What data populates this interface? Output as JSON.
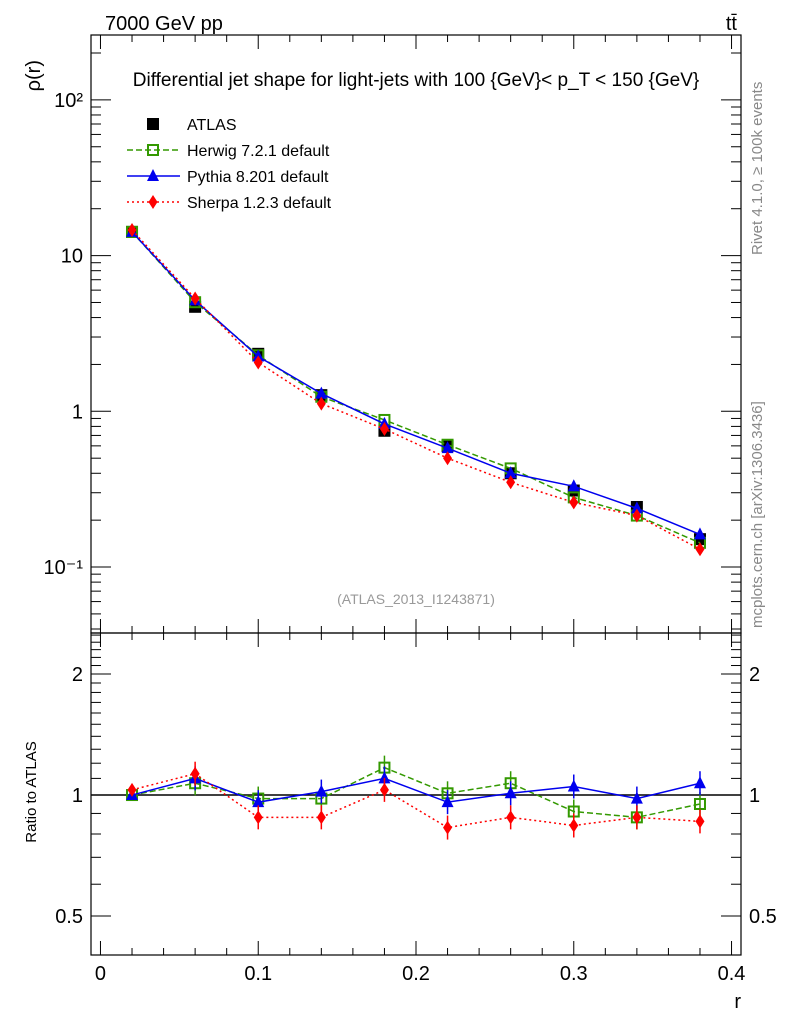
{
  "header": {
    "energy_label": "7000 GeV pp",
    "process_label": "tt̄",
    "side_label_top": "Rivet 4.1.0, ≥ 100k events",
    "side_label_bottom": "mcplots.cern.ch [arXiv:1306.3436]",
    "watermark": "(ATLAS_2013_I1243871)"
  },
  "chart_data": [
    {
      "type": "line",
      "title": "Differential jet shape for light-jets with 100 {GeV}< p_T < 150 {GeV}",
      "xlabel": "r",
      "ylabel": "ρ(r)",
      "yscale": "log",
      "xlim": [
        -0.006,
        0.406
      ],
      "ylim": [
        0.0377,
        261
      ],
      "xticks": [
        "0",
        "0.1",
        "0.2",
        "0.3",
        "0.4"
      ],
      "xtick_values": [
        0,
        0.1,
        0.2,
        0.3,
        0.4
      ],
      "yticks": [
        "10⁻¹",
        "1",
        "10",
        "10²"
      ],
      "ytick_values": [
        0.1,
        1,
        10,
        100
      ],
      "legend_position": "top-left",
      "x": [
        0.02,
        0.06,
        0.1,
        0.14,
        0.18,
        0.22,
        0.26,
        0.3,
        0.34,
        0.38
      ],
      "series": [
        {
          "name": "ATLAS",
          "color": "#000000",
          "marker": "square",
          "values": [
            14.2,
            4.69,
            2.34,
            1.27,
            0.75,
            0.6,
            0.4,
            0.31,
            0.243,
            0.151
          ]
        },
        {
          "name": "Herwig 7.2.1 default",
          "color": "#339900",
          "marker": "open-square",
          "dash": "6,3",
          "values": [
            14.2,
            5.02,
            2.29,
            1.24,
            0.88,
            0.61,
            0.43,
            0.28,
            0.214,
            0.143
          ]
        },
        {
          "name": "Pythia 8.201 default",
          "color": "#0000ee",
          "marker": "triangle",
          "dash": "",
          "values": [
            14.2,
            5.16,
            2.25,
            1.3,
            0.83,
            0.58,
            0.4,
            0.33,
            0.238,
            0.162
          ]
        },
        {
          "name": "Sherpa 1.2.3 default",
          "color": "#ff0000",
          "marker": "diamond",
          "dash": "2,3",
          "values": [
            14.6,
            5.3,
            2.06,
            1.12,
            0.77,
            0.5,
            0.35,
            0.26,
            0.214,
            0.13
          ]
        }
      ]
    },
    {
      "type": "line",
      "ylabel": "Ratio to ATLAS",
      "xlabel": "r",
      "yscale": "log",
      "ylim": [
        0.4,
        2.53
      ],
      "yticks": [
        "0.5",
        "1",
        "2"
      ],
      "ytick_values": [
        0.5,
        1,
        2
      ],
      "x": [
        0.02,
        0.06,
        0.1,
        0.14,
        0.18,
        0.22,
        0.26,
        0.3,
        0.34,
        0.38
      ],
      "series": [
        {
          "name": "Herwig 7.2.1 default",
          "values": [
            1.0,
            1.07,
            0.98,
            0.98,
            1.17,
            1.01,
            1.07,
            0.91,
            0.88,
            0.95
          ]
        },
        {
          "name": "Pythia 8.201 default",
          "values": [
            1.0,
            1.1,
            0.96,
            1.02,
            1.1,
            0.96,
            1.01,
            1.05,
            0.98,
            1.07
          ]
        },
        {
          "name": "Sherpa 1.2.3 default",
          "values": [
            1.03,
            1.13,
            0.88,
            0.88,
            1.03,
            0.83,
            0.88,
            0.84,
            0.88,
            0.86
          ]
        }
      ]
    }
  ]
}
